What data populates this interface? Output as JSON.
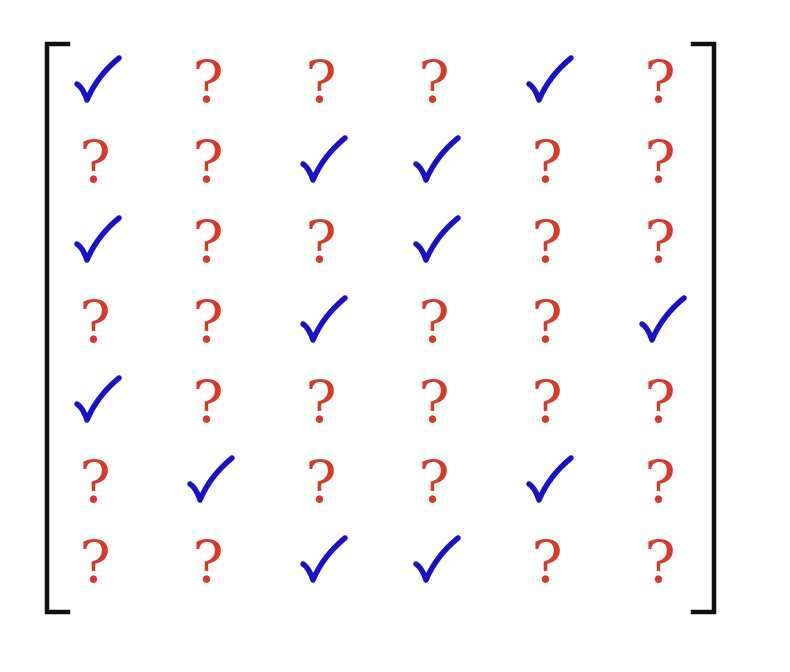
{
  "matrix": {
    "rows": 7,
    "cols": 6,
    "symbols": {
      "known": "check-icon",
      "unknown": "?"
    },
    "colors": {
      "known": "#1a10c8",
      "unknown": "#d63a2a",
      "bracket": "#111111"
    },
    "cells": [
      [
        "check",
        "?",
        "?",
        "?",
        "check",
        "?"
      ],
      [
        "?",
        "?",
        "check",
        "check",
        "?",
        "?"
      ],
      [
        "check",
        "?",
        "?",
        "check",
        "?",
        "?"
      ],
      [
        "?",
        "?",
        "check",
        "?",
        "?",
        "check"
      ],
      [
        "check",
        "?",
        "?",
        "?",
        "?",
        "?"
      ],
      [
        "?",
        "check",
        "?",
        "?",
        "check",
        "?"
      ],
      [
        "?",
        "?",
        "check",
        "check",
        "?",
        "?"
      ]
    ]
  }
}
